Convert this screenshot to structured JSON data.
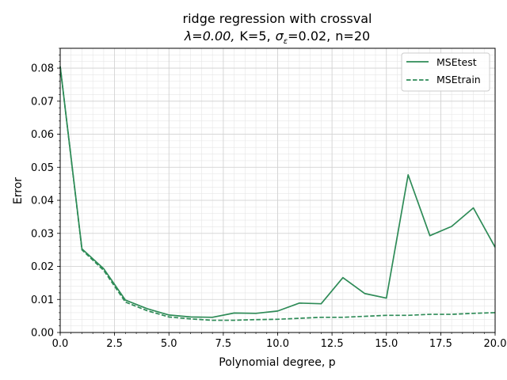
{
  "chart_data": {
    "type": "line",
    "title": "ridge regression with crossval",
    "subtitle": "λ=0.00,  K=5,  σε=0.02,  n=20",
    "subtitle_parts": {
      "lambda": "λ=0.00,",
      "k": "K=5,",
      "sigma_symbol": "σ",
      "sigma_sub": "ε",
      "sigma_value": "=0.02,",
      "n": "n=20"
    },
    "xlabel": "Polynomial degree, p",
    "ylabel": "Error",
    "xlim": [
      0,
      20
    ],
    "ylim": [
      0,
      0.086
    ],
    "xticks": [
      0,
      2.5,
      5,
      7.5,
      10,
      12.5,
      15,
      17.5,
      20
    ],
    "xtick_labels": [
      "0.0",
      "2.5",
      "5.0",
      "7.5",
      "10.0",
      "12.5",
      "15.0",
      "17.5",
      "20.0"
    ],
    "yticks": [
      0,
      0.01,
      0.02,
      0.03,
      0.04,
      0.05,
      0.06,
      0.07,
      0.08
    ],
    "ytick_labels": [
      "0.00",
      "0.01",
      "0.02",
      "0.03",
      "0.04",
      "0.05",
      "0.06",
      "0.07",
      "0.08"
    ],
    "grid": true,
    "legend_position": "top-right",
    "x": [
      0,
      1,
      2,
      3,
      4,
      5,
      6,
      7,
      8,
      9,
      10,
      11,
      12,
      13,
      14,
      15,
      16,
      17,
      18,
      19,
      20
    ],
    "series": [
      {
        "name": "MSEtest",
        "style": "solid",
        "color": "#2e8b57",
        "values": [
          0.0805,
          0.0253,
          0.0193,
          0.0098,
          0.0072,
          0.0053,
          0.0047,
          0.0046,
          0.0059,
          0.0058,
          0.0065,
          0.0089,
          0.0087,
          0.0166,
          0.0118,
          0.0104,
          0.0477,
          0.0293,
          0.0321,
          0.0377,
          0.0258
        ]
      },
      {
        "name": "MSEtrain",
        "style": "dashed",
        "color": "#2e8b57",
        "values": [
          0.0805,
          0.025,
          0.0188,
          0.0092,
          0.0066,
          0.0047,
          0.0041,
          0.0037,
          0.0037,
          0.0039,
          0.004,
          0.0043,
          0.0046,
          0.0046,
          0.0049,
          0.0052,
          0.0052,
          0.0055,
          0.0055,
          0.0058,
          0.006
        ]
      }
    ]
  }
}
